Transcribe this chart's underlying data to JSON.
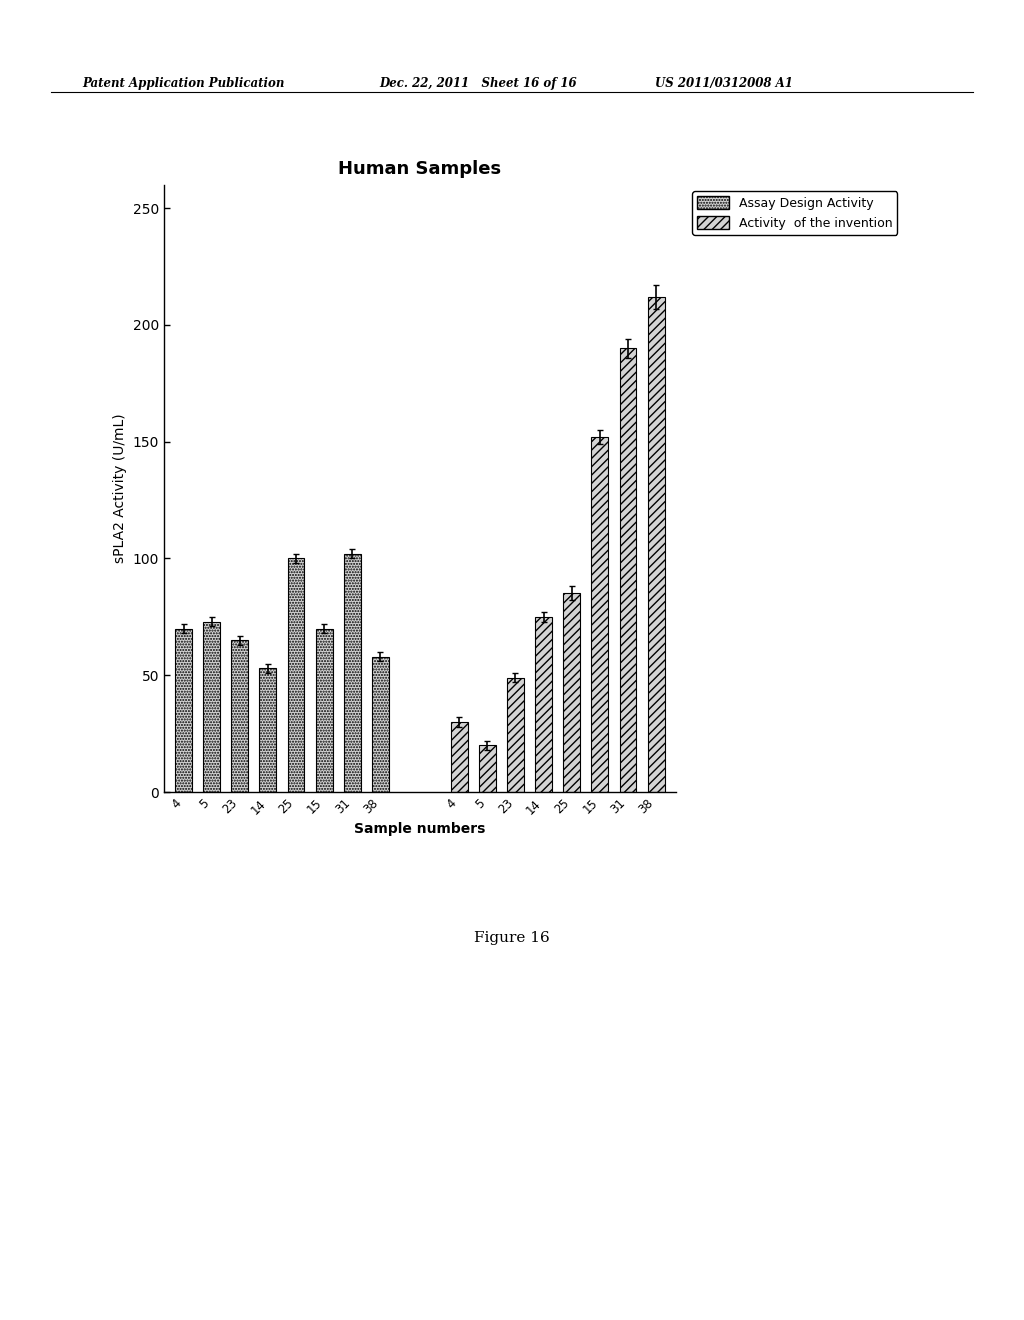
{
  "title": "Human Samples",
  "xlabel": "Sample numbers",
  "ylabel": "sPLA2 Activity (U/mL)",
  "ylim": [
    0,
    260
  ],
  "yticks": [
    0,
    50,
    100,
    150,
    200,
    250
  ],
  "categories": [
    "4",
    "5",
    "23",
    "14",
    "25",
    "15",
    "31",
    "38"
  ],
  "group1_values": [
    70,
    73,
    65,
    53,
    100,
    70,
    102,
    58
  ],
  "group2_values": [
    30,
    20,
    49,
    75,
    85,
    152,
    190,
    212
  ],
  "group1_errors": [
    2,
    2,
    2,
    2,
    2,
    2,
    2,
    2
  ],
  "group2_errors": [
    2,
    2,
    2,
    2,
    3,
    3,
    4,
    5
  ],
  "legend_labels": [
    "Assay Design Activity",
    "Activity  of the invention"
  ],
  "background_color": "#ffffff",
  "header_left": "Patent Application Publication",
  "header_mid": "Dec. 22, 2011   Sheet 16 of 16",
  "header_right": "US 2011/0312008 A1",
  "figure_caption": "Figure 16"
}
